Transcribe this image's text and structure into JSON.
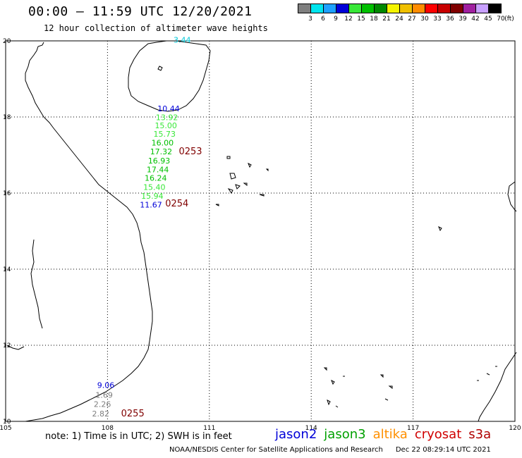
{
  "header": {
    "title": "00:00 – 11:59 UTC 12/20/2021",
    "subtitle": "12 hour collection of altimeter wave heights"
  },
  "legend": {
    "unit": "(ft)",
    "bins": [
      {
        "label": "3",
        "color": "#7f7f7f"
      },
      {
        "label": "6",
        "color": "#00e5ee"
      },
      {
        "label": "9",
        "color": "#1ea0ff"
      },
      {
        "label": "12",
        "color": "#0000d8"
      },
      {
        "label": "15",
        "color": "#38e838"
      },
      {
        "label": "18",
        "color": "#00c000"
      },
      {
        "label": "21",
        "color": "#008800"
      },
      {
        "label": "24",
        "color": "#f4f400"
      },
      {
        "label": "27",
        "color": "#f0c000"
      },
      {
        "label": "30",
        "color": "#ff8c00"
      },
      {
        "label": "33",
        "color": "#ff0000"
      },
      {
        "label": "36",
        "color": "#c80000"
      },
      {
        "label": "39",
        "color": "#800000"
      },
      {
        "label": "42",
        "color": "#a020a0"
      },
      {
        "label": "45",
        "color": "#c8a0ff"
      },
      {
        "label": "70",
        "color": "#000000"
      }
    ]
  },
  "map": {
    "lon_min": 105,
    "lon_max": 120,
    "lat_min": 10,
    "lat_max": 20,
    "lon_ticks": [
      "105",
      "108",
      "111",
      "114",
      "117",
      "120"
    ],
    "lat_ticks": [
      "20",
      "18",
      "16",
      "14",
      "12",
      "10"
    ],
    "swh_labels": [
      {
        "value": "3.44",
        "lon": 110.2,
        "lat": 19.95,
        "color": "#00c8d8"
      },
      {
        "value": "10.44",
        "lon": 109.8,
        "lat": 18.15,
        "color": "#0000d8"
      },
      {
        "value": "13.92",
        "lon": 109.75,
        "lat": 17.92,
        "color": "#38e838"
      },
      {
        "value": "15.00",
        "lon": 109.72,
        "lat": 17.7,
        "color": "#38e838"
      },
      {
        "value": "15.73",
        "lon": 109.68,
        "lat": 17.48,
        "color": "#38e838"
      },
      {
        "value": "16.00",
        "lon": 109.62,
        "lat": 17.25,
        "color": "#00c000"
      },
      {
        "value": "17.32",
        "lon": 109.58,
        "lat": 17.02,
        "color": "#00c000"
      },
      {
        "value": "16.93",
        "lon": 109.52,
        "lat": 16.78,
        "color": "#00c000"
      },
      {
        "value": "17.44",
        "lon": 109.48,
        "lat": 16.55,
        "color": "#00c000"
      },
      {
        "value": "16.24",
        "lon": 109.42,
        "lat": 16.32,
        "color": "#00c000"
      },
      {
        "value": "15.40",
        "lon": 109.38,
        "lat": 16.08,
        "color": "#38e838"
      },
      {
        "value": "15.94",
        "lon": 109.32,
        "lat": 15.85,
        "color": "#38e838"
      },
      {
        "value": "11.67",
        "lon": 109.28,
        "lat": 15.62,
        "color": "#0000d8"
      },
      {
        "value": "9.06",
        "lon": 107.95,
        "lat": 10.88,
        "color": "#0000d8"
      },
      {
        "value": "1.69",
        "lon": 107.9,
        "lat": 10.62,
        "color": "#7f7f7f"
      },
      {
        "value": "2.26",
        "lon": 107.85,
        "lat": 10.38,
        "color": "#7f7f7f"
      },
      {
        "value": "2.82",
        "lon": 107.8,
        "lat": 10.13,
        "color": "#7f7f7f"
      }
    ],
    "time_labels": [
      {
        "value": "0253",
        "lon": 110.1,
        "lat": 17.02,
        "color": "#800000"
      },
      {
        "value": "0254",
        "lon": 109.7,
        "lat": 15.65,
        "color": "#800000"
      },
      {
        "value": "0255",
        "lon": 108.4,
        "lat": 10.13,
        "color": "#800000"
      }
    ]
  },
  "footer": {
    "note": "note: 1) Time is in UTC; 2) SWH is in feet",
    "satellites": [
      {
        "name": "jason2",
        "color": "#0000d8"
      },
      {
        "name": "jason3",
        "color": "#00a000"
      },
      {
        "name": "altika",
        "color": "#ff9000"
      },
      {
        "name": "cryosat",
        "color": "#d00000"
      },
      {
        "name": "s3a",
        "color": "#b00000"
      }
    ],
    "credit": "NOAA/NESDIS Center for Satellite Applications and Research",
    "timestamp": "Dec 22 08:29:14 UTC 2021"
  }
}
